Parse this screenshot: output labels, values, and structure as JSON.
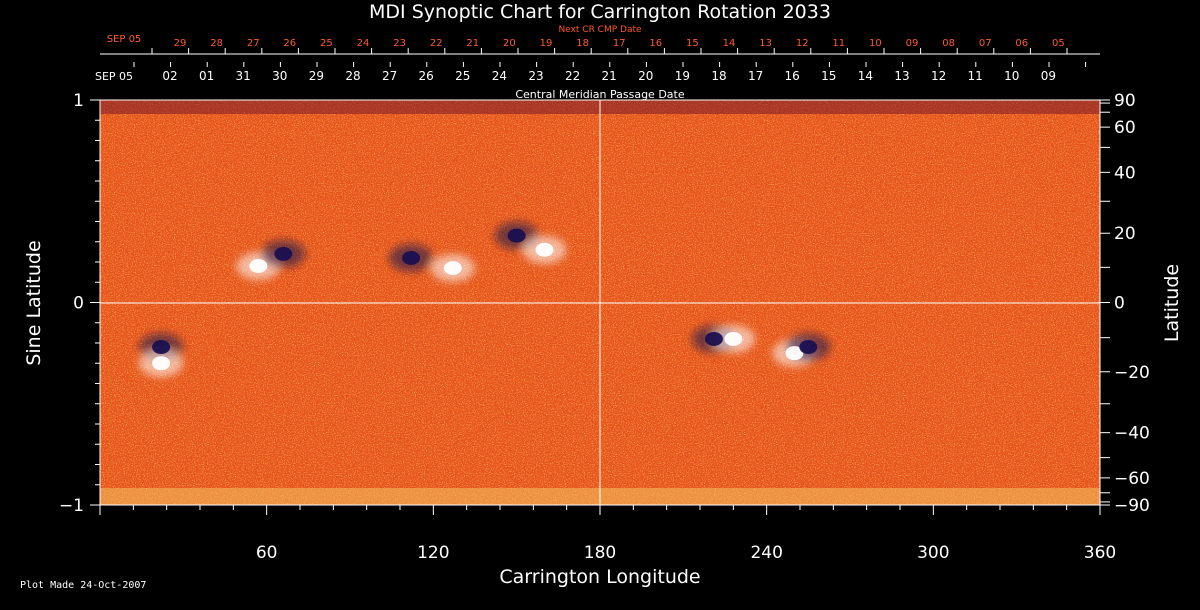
{
  "chart_data": {
    "type": "heatmap",
    "title": "MDI Synoptic Chart for Carrington Rotation 2033",
    "xlabel": "Carrington Longitude",
    "ylabel_left": "Sine Latitude",
    "ylabel_right": "Latitude",
    "xlim": [
      0,
      360
    ],
    "ylim": [
      -1,
      1
    ],
    "x_ticks": [
      "60",
      "120",
      "180",
      "240",
      "300",
      "360"
    ],
    "y_ticks_left": [
      "1",
      "0",
      "−1"
    ],
    "y_ticks_right": [
      "90",
      "60",
      "40",
      "20",
      "0",
      "−20",
      "−40",
      "−60",
      "−90"
    ],
    "top_axis_label": "Central Meridian Passage Date",
    "top_axis_start": "SEP 05",
    "top_axis_dates": [
      "02",
      "01",
      "31",
      "30",
      "29",
      "28",
      "27",
      "26",
      "25",
      "24",
      "23",
      "22",
      "21",
      "20",
      "19",
      "18",
      "17",
      "16",
      "15",
      "14",
      "13",
      "12",
      "11",
      "10",
      "09"
    ],
    "next_cr_label": "Next CR CMP Date",
    "next_cr_start": "SEP 05",
    "next_cr_dates": [
      "29",
      "28",
      "27",
      "26",
      "25",
      "24",
      "23",
      "22",
      "21",
      "20",
      "19",
      "18",
      "17",
      "16",
      "15",
      "14",
      "13",
      "12",
      "11",
      "10",
      "09",
      "08",
      "07",
      "06",
      "05"
    ],
    "background_color": "#e8541a",
    "positive_color": "#ffffff",
    "negative_color": "#1a1050",
    "active_regions": [
      {
        "lon": 57,
        "sinlat": 0.18,
        "polarity": "positive"
      },
      {
        "lon": 66,
        "sinlat": 0.24,
        "polarity": "negative"
      },
      {
        "lon": 112,
        "sinlat": 0.22,
        "polarity": "negative"
      },
      {
        "lon": 127,
        "sinlat": 0.17,
        "polarity": "positive"
      },
      {
        "lon": 150,
        "sinlat": 0.33,
        "polarity": "negative"
      },
      {
        "lon": 160,
        "sinlat": 0.26,
        "polarity": "positive"
      },
      {
        "lon": 221,
        "sinlat": -0.18,
        "polarity": "negative"
      },
      {
        "lon": 228,
        "sinlat": -0.18,
        "polarity": "positive"
      },
      {
        "lon": 250,
        "sinlat": -0.25,
        "polarity": "positive"
      },
      {
        "lon": 255,
        "sinlat": -0.22,
        "polarity": "negative"
      },
      {
        "lon": 22,
        "sinlat": -0.22,
        "polarity": "negative"
      },
      {
        "lon": 22,
        "sinlat": -0.3,
        "polarity": "positive"
      }
    ]
  },
  "footer": {
    "plot_made": "Plot Made 24-Oct-2007"
  }
}
